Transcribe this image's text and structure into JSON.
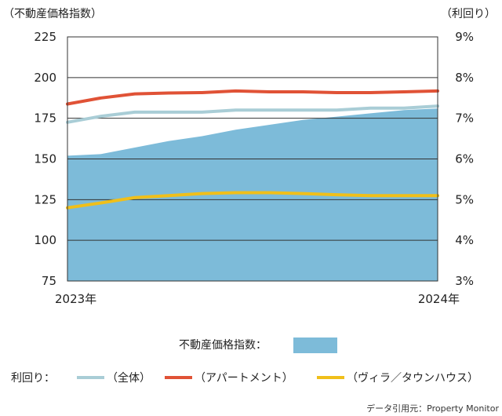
{
  "chart_data": {
    "type": "area+line",
    "left_axis_title": "（不動産価格指数）",
    "right_axis_title": "（利回り）",
    "x_labels": [
      "2023年",
      "2024年"
    ],
    "left_axis": {
      "min": 75,
      "max": 225,
      "ticks": [
        75,
        100,
        125,
        150,
        175,
        200,
        225
      ]
    },
    "right_axis": {
      "min": 3,
      "max": 9,
      "ticks": [
        "3%",
        "4%",
        "5%",
        "6%",
        "7%",
        "8%",
        "9%"
      ]
    },
    "grid": true,
    "x_points": 12,
    "area_series": {
      "name": "不動産価格指数：",
      "color": "#7dbbd9",
      "values": [
        152,
        153,
        157,
        161,
        164,
        168,
        171,
        174,
        176,
        178,
        180,
        181
      ]
    },
    "line_series": [
      {
        "name": "（全体）",
        "color": "#a9cdd6",
        "values": [
          6.9,
          7.05,
          7.15,
          7.15,
          7.15,
          7.2,
          7.2,
          7.2,
          7.2,
          7.25,
          7.25,
          7.3
        ]
      },
      {
        "name": "（アパートメント）",
        "color": "#e05236",
        "values": [
          7.35,
          7.5,
          7.6,
          7.62,
          7.63,
          7.67,
          7.65,
          7.65,
          7.63,
          7.63,
          7.65,
          7.67
        ]
      },
      {
        "name": "（ヴィラ／タウンハウス）",
        "color": "#f0bf1a",
        "values": [
          4.8,
          4.92,
          5.05,
          5.1,
          5.15,
          5.17,
          5.17,
          5.15,
          5.12,
          5.1,
          5.1,
          5.1
        ]
      }
    ],
    "legend_yield_label": "利回り：",
    "source": "データ引用元：Property Monitor"
  }
}
